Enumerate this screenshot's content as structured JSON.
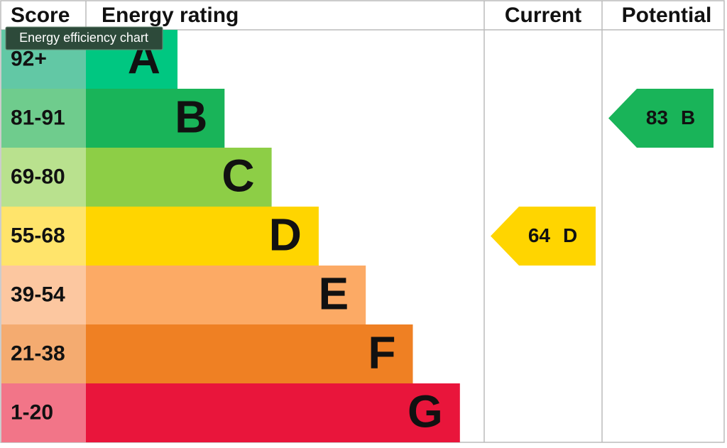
{
  "chart_data": {
    "type": "epc",
    "headers": {
      "score": "Score",
      "rating": "Energy rating",
      "current": "Current",
      "potential": "Potential"
    },
    "tooltip": "Energy efficiency chart",
    "bands": [
      {
        "score": "92+",
        "letter": "A",
        "color": "#00c781",
        "score_color": "#62c8a5"
      },
      {
        "score": "81-91",
        "letter": "B",
        "color": "#19b459",
        "score_color": "#6fcc8d"
      },
      {
        "score": "69-80",
        "letter": "C",
        "color": "#8dce46",
        "score_color": "#b9e18e"
      },
      {
        "score": "55-68",
        "letter": "D",
        "color": "#ffd500",
        "score_color": "#ffe46b"
      },
      {
        "score": "39-54",
        "letter": "E",
        "color": "#fcaa65",
        "score_color": "#fcc7a0"
      },
      {
        "score": "21-38",
        "letter": "F",
        "color": "#ef8023",
        "score_color": "#f4ab70"
      },
      {
        "score": "1-20",
        "letter": "G",
        "color": "#e9153b",
        "score_color": "#f27588"
      }
    ],
    "current": {
      "value": 64,
      "rating": "D"
    },
    "potential": {
      "value": 83,
      "rating": "B"
    }
  }
}
